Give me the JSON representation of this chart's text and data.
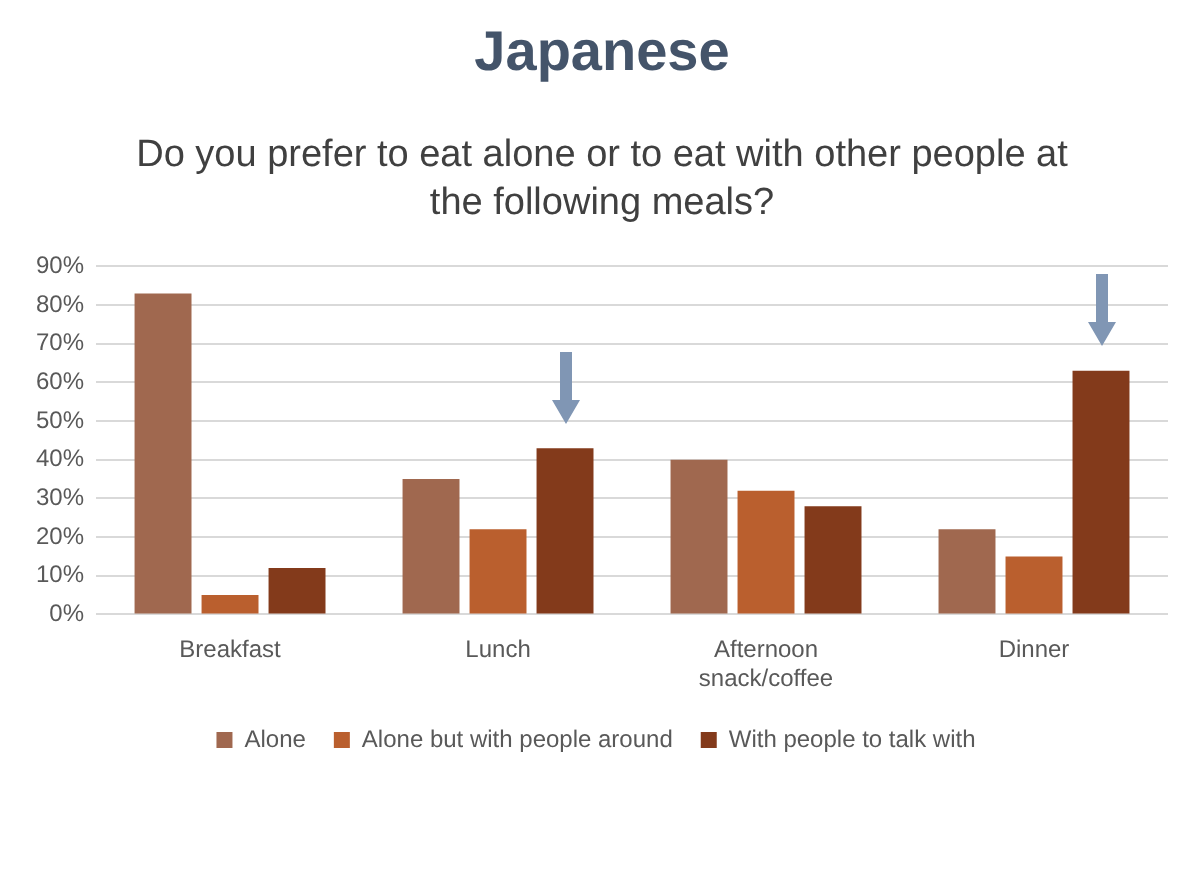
{
  "chart_data": {
    "type": "bar",
    "title": "Japanese",
    "subtitle": "Do you prefer to eat alone or to eat with other people at the following meals?",
    "categories": [
      "Breakfast",
      "Lunch",
      "Afternoon snack/coffee",
      "Dinner"
    ],
    "series": [
      {
        "name": "Alone",
        "color": "#a0684f",
        "values": [
          83,
          35,
          40,
          22
        ]
      },
      {
        "name": "Alone but with people around",
        "color": "#ba5f2e",
        "values": [
          5,
          22,
          32,
          15
        ]
      },
      {
        "name": "With people to talk with",
        "color": "#833a1b",
        "values": [
          12,
          43,
          28,
          63
        ]
      }
    ],
    "ylim": [
      0,
      90
    ],
    "yticks": [
      {
        "value": 0,
        "label": "0%"
      },
      {
        "value": 10,
        "label": "10%"
      },
      {
        "value": 20,
        "label": "20%"
      },
      {
        "value": 30,
        "label": "30%"
      },
      {
        "value": 40,
        "label": "40%"
      },
      {
        "value": 50,
        "label": "50%"
      },
      {
        "value": 60,
        "label": "60%"
      },
      {
        "value": 70,
        "label": "70%"
      },
      {
        "value": 80,
        "label": "80%"
      },
      {
        "value": 90,
        "label": "90%"
      }
    ],
    "grid": "y",
    "legend": "bottom"
  }
}
